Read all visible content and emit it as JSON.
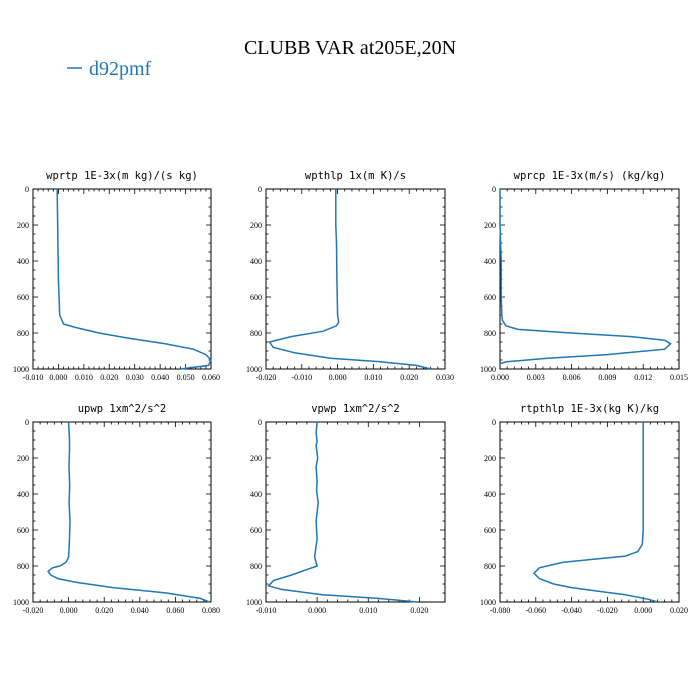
{
  "figure": {
    "title": "CLUBB VAR at205E,20N",
    "legend": [
      {
        "label": "d92pmf",
        "color": "#1f77b4"
      }
    ]
  },
  "chart_data": [
    {
      "type": "line",
      "title": "wprtp   1E-3x(m kg)/(s kg)",
      "xlim": [
        -0.01,
        0.06
      ],
      "ylim": [
        1000,
        0
      ],
      "xticks": [
        "-0.010",
        "0.000",
        "0.010",
        "0.020",
        "0.030",
        "0.040",
        "0.050",
        "0.060"
      ],
      "xtick_values": [
        -0.01,
        0.0,
        0.01,
        0.02,
        0.03,
        0.04,
        0.05,
        0.06
      ],
      "yticks": [
        "0",
        "200",
        "400",
        "600",
        "800",
        "1000"
      ],
      "ytick_values": [
        0,
        200,
        400,
        600,
        800,
        1000
      ],
      "series": [
        {
          "name": "d92pmf",
          "color": "#1f77b4",
          "x": [
            -0.0005,
            -0.0004,
            -0.0003,
            -0.0002,
            -0.0001,
            0.0,
            0.0005,
            0.002,
            0.007,
            0.016,
            0.028,
            0.042,
            0.053,
            0.058,
            0.06,
            0.059,
            0.048
          ],
          "y": [
            0,
            100,
            200,
            300,
            400,
            500,
            700,
            750,
            770,
            800,
            830,
            860,
            890,
            920,
            950,
            980,
            1000
          ]
        }
      ]
    },
    {
      "type": "line",
      "title": "wpthlp  1x(m K)/s",
      "xlim": [
        -0.02,
        0.03
      ],
      "ylim": [
        1000,
        0
      ],
      "xticks": [
        "-0.020",
        "-0.010",
        "0.000",
        "0.010",
        "0.020",
        "0.030"
      ],
      "xtick_values": [
        -0.02,
        -0.01,
        0.0,
        0.01,
        0.02,
        0.03
      ],
      "yticks": [
        "0",
        "200",
        "400",
        "600",
        "800",
        "1000"
      ],
      "ytick_values": [
        0,
        200,
        400,
        600,
        800,
        1000
      ],
      "series": [
        {
          "name": "d92pmf",
          "color": "#1f77b4",
          "x": [
            -0.0005,
            -0.0005,
            -0.0005,
            -0.0003,
            -0.0002,
            0.0,
            0.0003,
            -0.0003,
            -0.004,
            -0.013,
            -0.019,
            -0.018,
            -0.012,
            -0.002,
            0.012,
            0.022,
            0.026
          ],
          "y": [
            0,
            100,
            200,
            300,
            500,
            700,
            740,
            760,
            790,
            820,
            850,
            880,
            910,
            940,
            960,
            980,
            1000
          ]
        }
      ]
    },
    {
      "type": "line",
      "title": "wprcp   1E-3x(m/s) (kg/kg)",
      "xlim": [
        0.0,
        0.015
      ],
      "ylim": [
        1000,
        0
      ],
      "xticks": [
        "0.000",
        "0.003",
        "0.006",
        "0.009",
        "0.012",
        "0.015"
      ],
      "xtick_values": [
        0.0,
        0.003,
        0.006,
        0.009,
        0.012,
        0.015
      ],
      "yticks": [
        "0",
        "200",
        "400",
        "600",
        "800",
        "1000"
      ],
      "ytick_values": [
        0,
        200,
        400,
        600,
        800,
        1000
      ],
      "series": [
        {
          "name": "d92pmf",
          "color": "#1f77b4",
          "x": [
            0.0,
            0.0,
            0.0001,
            0.0001,
            0.00015,
            0.0002,
            0.0005,
            0.0015,
            0.006,
            0.011,
            0.0138,
            0.0143,
            0.0138,
            0.009,
            0.004,
            0.0005,
            0.0
          ],
          "y": [
            0,
            200,
            400,
            600,
            700,
            730,
            760,
            780,
            800,
            820,
            840,
            860,
            890,
            920,
            940,
            960,
            970
          ]
        }
      ]
    },
    {
      "type": "line",
      "title": "upwp   1xm^2/s^2",
      "xlim": [
        -0.02,
        0.08
      ],
      "ylim": [
        1000,
        0
      ],
      "xticks": [
        "-0.020",
        "0.000",
        "0.020",
        "0.040",
        "0.060",
        "0.080"
      ],
      "xtick_values": [
        -0.02,
        0.0,
        0.02,
        0.04,
        0.06,
        0.08
      ],
      "yticks": [
        "0",
        "200",
        "400",
        "600",
        "800",
        "1000"
      ],
      "ytick_values": [
        0,
        200,
        400,
        600,
        800,
        1000
      ],
      "series": [
        {
          "name": "d92pmf",
          "color": "#1f77b4",
          "x": [
            0.0,
            0.0005,
            0.0005,
            0.0002,
            0.0006,
            0.0003,
            0.0008,
            0.0005,
            0.0,
            -0.0015,
            -0.005,
            -0.009,
            -0.0115,
            -0.01,
            -0.006,
            0.004,
            0.025,
            0.055,
            0.074,
            0.079
          ],
          "y": [
            0,
            100,
            150,
            250,
            350,
            450,
            550,
            650,
            750,
            780,
            800,
            810,
            830,
            850,
            870,
            890,
            920,
            950,
            980,
            1000
          ]
        }
      ]
    },
    {
      "type": "line",
      "title": "vpwp   1xm^2/s^2",
      "xlim": [
        -0.01,
        0.025
      ],
      "ylim": [
        1000,
        0
      ],
      "xticks": [
        "-0.010",
        "0.000",
        "0.010",
        "0.020"
      ],
      "xtick_values": [
        -0.01,
        0.0,
        0.01,
        0.02
      ],
      "yticks": [
        "0",
        "200",
        "400",
        "600",
        "800",
        "1000"
      ],
      "ytick_values": [
        0,
        200,
        400,
        600,
        800,
        1000
      ],
      "series": [
        {
          "name": "d92pmf",
          "color": "#1f77b4",
          "x": [
            0.0,
            -0.0002,
            0.0,
            -0.0002,
            0.0001,
            -0.0002,
            0.0,
            -0.0001,
            0.0002,
            -0.0002,
            0.0,
            -0.0005,
            0.0,
            -0.002,
            -0.005,
            -0.0085,
            -0.0095,
            -0.007,
            0.001,
            0.012,
            0.0195
          ],
          "y": [
            0,
            60,
            110,
            130,
            200,
            250,
            330,
            380,
            450,
            550,
            650,
            750,
            800,
            820,
            850,
            880,
            910,
            930,
            960,
            980,
            1000
          ]
        }
      ]
    },
    {
      "type": "line",
      "title": "rtpthlp   1E-3x(kg K)/kg",
      "xlim": [
        -0.08,
        0.02
      ],
      "ylim": [
        1000,
        0
      ],
      "xticks": [
        "-0.080",
        "-0.060",
        "-0.040",
        "-0.020",
        "0.000",
        "0.020"
      ],
      "xtick_values": [
        -0.08,
        -0.06,
        -0.04,
        -0.02,
        0.0,
        0.02
      ],
      "yticks": [
        "0",
        "200",
        "400",
        "600",
        "800",
        "1000"
      ],
      "ytick_values": [
        0,
        200,
        400,
        600,
        800,
        1000
      ],
      "series": [
        {
          "name": "d92pmf",
          "color": "#1f77b4",
          "x": [
            0.0,
            0.0,
            0.0,
            -0.0005,
            -0.003,
            -0.01,
            -0.025,
            -0.045,
            -0.058,
            -0.061,
            -0.058,
            -0.05,
            -0.04,
            -0.025,
            -0.01,
            0.003,
            0.008
          ],
          "y": [
            0,
            200,
            600,
            680,
            720,
            745,
            760,
            780,
            810,
            840,
            870,
            900,
            920,
            940,
            960,
            985,
            1000
          ]
        }
      ]
    }
  ]
}
